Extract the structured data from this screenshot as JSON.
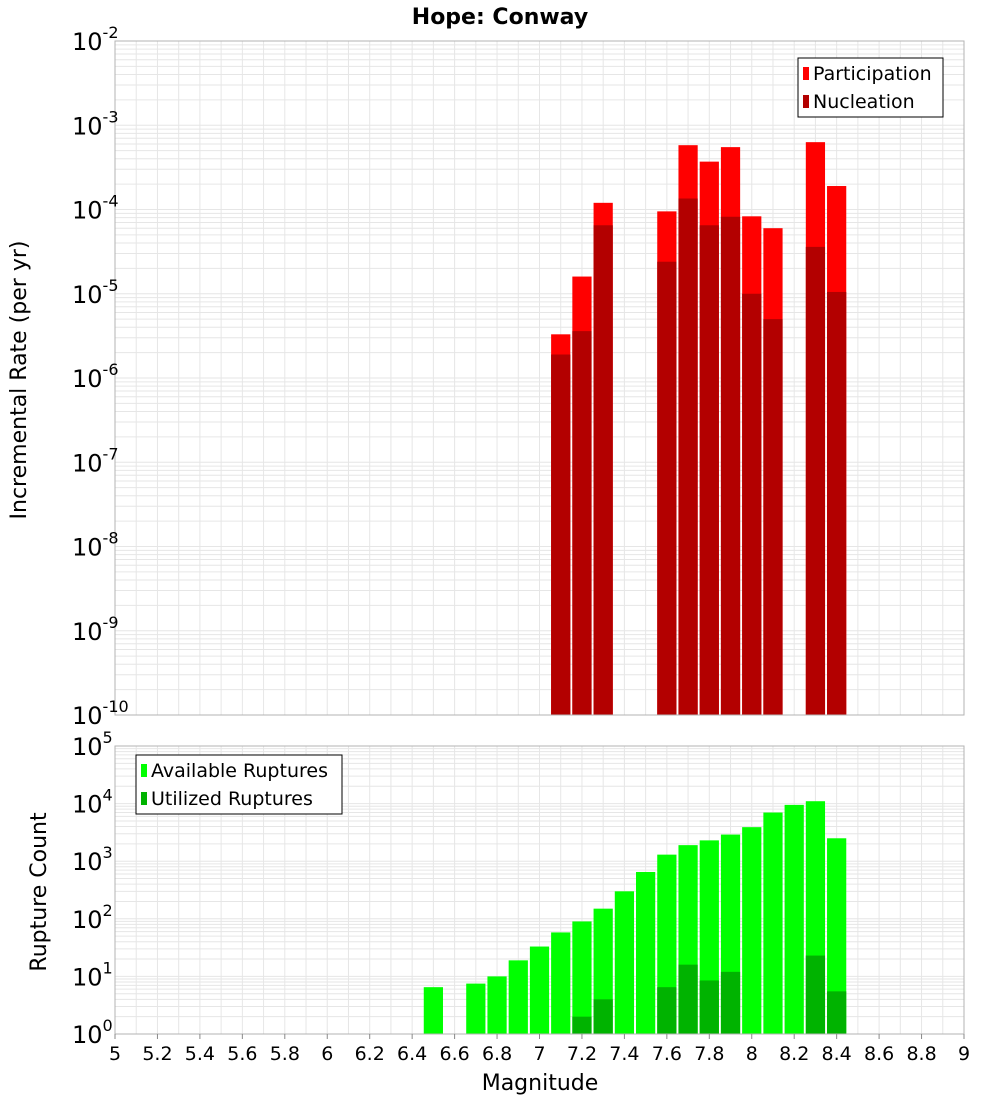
{
  "chart_data": [
    {
      "type": "bar",
      "title": "Hope: Conway",
      "xlabel": "",
      "ylabel": "Incremental Rate (per yr)",
      "y_scale": "log",
      "ylim_exponents": [
        -10,
        -2
      ],
      "xlim": [
        5,
        9
      ],
      "bin_width": 0.1,
      "grid": true,
      "legend_position": "top-right",
      "x": [
        7.1,
        7.2,
        7.3,
        7.6,
        7.7,
        7.8,
        7.9,
        8.0,
        8.1,
        8.3,
        8.4
      ],
      "series": [
        {
          "name": "Participation",
          "color": "#ff0000",
          "values": [
            3.3e-06,
            1.6e-05,
            0.00012,
            9.5e-05,
            0.00058,
            0.00037,
            0.00055,
            8.3e-05,
            6e-05,
            0.00063,
            0.00019
          ]
        },
        {
          "name": "Nucleation",
          "color": "#b30000",
          "values": [
            1.9e-06,
            3.6e-06,
            6.5e-05,
            2.4e-05,
            0.000135,
            6.5e-05,
            8.2e-05,
            1e-05,
            5e-06,
            3.6e-05,
            1.05e-05
          ]
        }
      ]
    },
    {
      "type": "bar",
      "title": "",
      "xlabel": "Magnitude",
      "ylabel": "Rupture Count",
      "y_scale": "log",
      "ylim_exponents": [
        0,
        5
      ],
      "xlim": [
        5,
        9
      ],
      "bin_width": 0.1,
      "grid": true,
      "legend_position": "top-left",
      "x": [
        6.5,
        6.7,
        6.8,
        6.9,
        7.0,
        7.1,
        7.2,
        7.3,
        7.4,
        7.5,
        7.6,
        7.7,
        7.8,
        7.9,
        8.0,
        8.1,
        8.2,
        8.3,
        8.4
      ],
      "series": [
        {
          "name": "Available Ruptures",
          "color": "#00ff00",
          "values": [
            6.5,
            7.5,
            10,
            19,
            33,
            58,
            90,
            150,
            300,
            650,
            1300,
            1900,
            2300,
            2900,
            3900,
            7000,
            9500,
            11000,
            2500
          ]
        },
        {
          "name": "Utilized Ruptures",
          "color": "#00b300",
          "values": [
            0,
            0,
            0,
            0,
            0,
            1,
            2,
            4,
            0,
            0,
            6.5,
            16,
            8.5,
            12,
            1,
            1,
            0,
            23,
            5.5
          ]
        }
      ]
    }
  ],
  "shared_axis": {
    "label": "Magnitude",
    "ticks": [
      "5",
      "5.2",
      "5.4",
      "5.6",
      "5.8",
      "6",
      "6.2",
      "6.4",
      "6.6",
      "6.8",
      "7",
      "7.2",
      "7.4",
      "7.6",
      "7.8",
      "8",
      "8.2",
      "8.4",
      "8.6",
      "8.8",
      "9"
    ]
  },
  "colors": {
    "grid": "#e6e6e6",
    "frame": "#b3b3b3",
    "legend_border": "#000000"
  }
}
